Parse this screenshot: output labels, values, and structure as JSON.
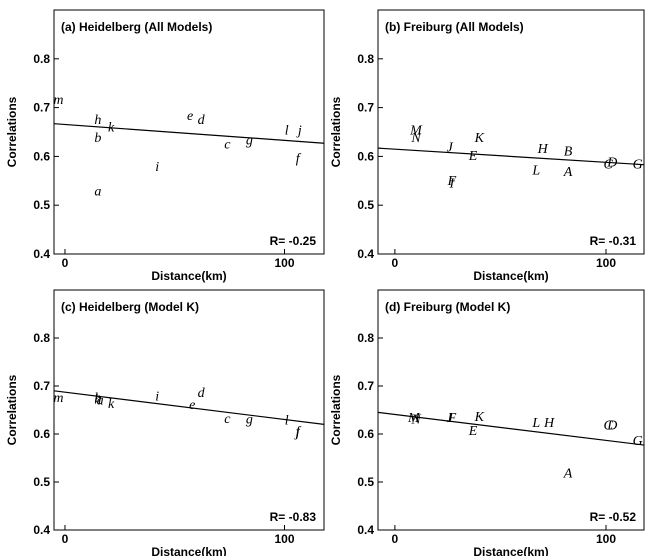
{
  "chart_data": [
    {
      "type": "scatter",
      "title": "(a) Heidelberg (All Models)",
      "xlabel": "Distance(km)",
      "ylabel": "Correlations",
      "xlim": [
        -5,
        118
      ],
      "ylim": [
        0.4,
        0.9
      ],
      "xticks": [
        "0",
        "100"
      ],
      "yticks": [
        "0.4",
        "0.5",
        "0.6",
        "0.7",
        "0.8"
      ],
      "r_label": "R= -0.25",
      "fit_line": {
        "x": [
          -5,
          118
        ],
        "y": [
          0.667,
          0.627
        ]
      },
      "points": [
        {
          "label": "m",
          "x": -3,
          "y": 0.718
        },
        {
          "label": "h",
          "x": 15,
          "y": 0.677
        },
        {
          "label": "k",
          "x": 21,
          "y": 0.661
        },
        {
          "label": "b",
          "x": 15,
          "y": 0.64
        },
        {
          "label": "a",
          "x": 15,
          "y": 0.53
        },
        {
          "label": "i",
          "x": 42,
          "y": 0.58
        },
        {
          "label": "e",
          "x": 57,
          "y": 0.685
        },
        {
          "label": "d",
          "x": 62,
          "y": 0.677
        },
        {
          "label": "c",
          "x": 74,
          "y": 0.626
        },
        {
          "label": "g",
          "x": 84,
          "y": 0.635
        },
        {
          "label": "l",
          "x": 101,
          "y": 0.655
        },
        {
          "label": "j",
          "x": 107,
          "y": 0.655
        },
        {
          "label": "f",
          "x": 106,
          "y": 0.598
        }
      ]
    },
    {
      "type": "scatter",
      "title": "(b) Freiburg (All Models)",
      "xlabel": "Distance(km)",
      "ylabel": "Correlations",
      "xlim": [
        -8,
        118
      ],
      "ylim": [
        0.4,
        0.9
      ],
      "xticks": [
        "0",
        "100"
      ],
      "yticks": [
        "0.4",
        "0.5",
        "0.6",
        "0.7",
        "0.8"
      ],
      "r_label": "R= -0.31",
      "fit_line": {
        "x": [
          -8,
          118
        ],
        "y": [
          0.617,
          0.583
        ]
      },
      "points": [
        {
          "label": "M",
          "x": 10,
          "y": 0.655
        },
        {
          "label": "N",
          "x": 10,
          "y": 0.64
        },
        {
          "label": "J",
          "x": 26,
          "y": 0.62
        },
        {
          "label": "K",
          "x": 40,
          "y": 0.64
        },
        {
          "label": "E",
          "x": 37,
          "y": 0.603
        },
        {
          "label": "F",
          "x": 27,
          "y": 0.552
        },
        {
          "label": "I",
          "x": 27,
          "y": 0.547
        },
        {
          "label": "H",
          "x": 70,
          "y": 0.617
        },
        {
          "label": "B",
          "x": 82,
          "y": 0.612
        },
        {
          "label": "L",
          "x": 67,
          "y": 0.573
        },
        {
          "label": "A",
          "x": 82,
          "y": 0.57
        },
        {
          "label": "D",
          "x": 103,
          "y": 0.59
        },
        {
          "label": "C",
          "x": 101,
          "y": 0.585
        },
        {
          "label": "G",
          "x": 115,
          "y": 0.585
        }
      ]
    },
    {
      "type": "scatter",
      "title": "(c) Heidelberg (Model K)",
      "xlabel": "Distance(km)",
      "ylabel": "Correlations",
      "xlim": [
        -5,
        118
      ],
      "ylim": [
        0.4,
        0.9
      ],
      "xticks": [
        "0",
        "100"
      ],
      "yticks": [
        "0.4",
        "0.5",
        "0.6",
        "0.7",
        "0.8"
      ],
      "r_label": "R= -0.83",
      "fit_line": {
        "x": [
          -5,
          118
        ],
        "y": [
          0.69,
          0.62
        ]
      },
      "points": [
        {
          "label": "m",
          "x": -3,
          "y": 0.677
        },
        {
          "label": "b",
          "x": 15,
          "y": 0.677
        },
        {
          "label": "a",
          "x": 16,
          "y": 0.672
        },
        {
          "label": "h",
          "x": 15,
          "y": 0.674
        },
        {
          "label": "k",
          "x": 21,
          "y": 0.665
        },
        {
          "label": "i",
          "x": 42,
          "y": 0.68
        },
        {
          "label": "d",
          "x": 62,
          "y": 0.687
        },
        {
          "label": "e",
          "x": 58,
          "y": 0.663
        },
        {
          "label": "c",
          "x": 74,
          "y": 0.633
        },
        {
          "label": "g",
          "x": 84,
          "y": 0.632
        },
        {
          "label": "l",
          "x": 101,
          "y": 0.63
        },
        {
          "label": "f",
          "x": 106,
          "y": 0.607
        },
        {
          "label": "j",
          "x": 106,
          "y": 0.605
        }
      ]
    },
    {
      "type": "scatter",
      "title": "(d) Freiburg (Model K)",
      "xlabel": "Distance(km)",
      "ylabel": "Correlations",
      "xlim": [
        -8,
        118
      ],
      "ylim": [
        0.4,
        0.9
      ],
      "xticks": [
        "0",
        "100"
      ],
      "yticks": [
        "0.4",
        "0.5",
        "0.6",
        "0.7",
        "0.8"
      ],
      "r_label": "R= -0.52",
      "fit_line": {
        "x": [
          -8,
          118
        ],
        "y": [
          0.645,
          0.577
        ]
      },
      "points": [
        {
          "label": "M",
          "x": 9,
          "y": 0.635
        },
        {
          "label": "N",
          "x": 10,
          "y": 0.632
        },
        {
          "label": "I",
          "x": 26,
          "y": 0.635
        },
        {
          "label": "J",
          "x": 26,
          "y": 0.635
        },
        {
          "label": "F",
          "x": 27,
          "y": 0.635
        },
        {
          "label": "K",
          "x": 40,
          "y": 0.637
        },
        {
          "label": "E",
          "x": 37,
          "y": 0.608
        },
        {
          "label": "L",
          "x": 67,
          "y": 0.625
        },
        {
          "label": "H",
          "x": 73,
          "y": 0.625
        },
        {
          "label": "D",
          "x": 103,
          "y": 0.62
        },
        {
          "label": "C",
          "x": 101,
          "y": 0.62
        },
        {
          "label": "G",
          "x": 115,
          "y": 0.588
        },
        {
          "label": "A",
          "x": 82,
          "y": 0.52
        }
      ]
    }
  ]
}
